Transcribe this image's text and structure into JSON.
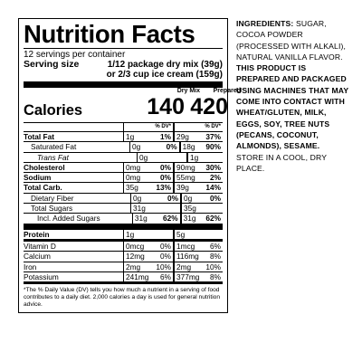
{
  "title": "Nutrition Facts",
  "servings_per_container": "12 servings per container",
  "serving_size_label": "Serving size",
  "serving_size_value": "1/12 package dry mix (39g)",
  "serving_size_alt": "or 2/3 cup ice cream (159g)",
  "col1_header": "Dry Mix",
  "col2_header": "Prepared",
  "calories_label": "Calories",
  "calories_dry": "140",
  "calories_prepared": "420",
  "dv_header": "% DV*",
  "rows": [
    {
      "name": "Total Fat",
      "dry": "1g",
      "dry_dv": "1%",
      "prep": "29g",
      "prep_dv": "37%"
    },
    {
      "name": "Saturated Fat",
      "dry": "0g",
      "dry_dv": "0%",
      "prep": "18g",
      "prep_dv": "90%"
    },
    {
      "name": "Trans Fat",
      "dry": "0g",
      "dry_dv": "",
      "prep": "1g",
      "prep_dv": ""
    },
    {
      "name": "Cholesterol",
      "dry": "0mg",
      "dry_dv": "0%",
      "prep": "90mg",
      "prep_dv": "30%"
    },
    {
      "name": "Sodium",
      "dry": "0mg",
      "dry_dv": "0%",
      "prep": "55mg",
      "prep_dv": "2%"
    },
    {
      "name": "Total Carb.",
      "dry": "35g",
      "dry_dv": "13%",
      "prep": "39g",
      "prep_dv": "14%"
    },
    {
      "name": "Dietary Fiber",
      "dry": "0g",
      "dry_dv": "0%",
      "prep": "0g",
      "prep_dv": "0%"
    },
    {
      "name": "Total Sugars",
      "dry": "31g",
      "dry_dv": "",
      "prep": "35g",
      "prep_dv": ""
    },
    {
      "name": "Incl. Added Sugars",
      "dry": "31g",
      "dry_dv": "62%",
      "prep": "31g",
      "prep_dv": "62%"
    },
    {
      "name": "Protein",
      "dry": "1g",
      "dry_dv": "",
      "prep": "5g",
      "prep_dv": ""
    },
    {
      "name": "Vitamin D",
      "dry": "0mcg",
      "dry_dv": "0%",
      "prep": "1mcg",
      "prep_dv": "6%"
    },
    {
      "name": "Calcium",
      "dry": "12mg",
      "dry_dv": "0%",
      "prep": "116mg",
      "prep_dv": "8%"
    },
    {
      "name": "Iron",
      "dry": "2mg",
      "dry_dv": "10%",
      "prep": "2mg",
      "prep_dv": "10%"
    },
    {
      "name": "Potassium",
      "dry": "241mg",
      "dry_dv": "6%",
      "prep": "377mg",
      "prep_dv": "8%"
    }
  ],
  "footnote": "*The % Daily Value (DV) tells you how much a nutrient in a serving of food contributes to a daily diet. 2,000 calories a day is used for general nutrition advice.",
  "ingredients_label": "INGREDIENTS:",
  "ingredients_text": "SUGAR, COCOA POWDER (PROCESSED WITH ALKALI), NATURAL VANILLA FLAVOR.",
  "allergen_text": "THIS PRODUCT IS PREPARED AND PACKAGED USING MACHINES THAT MAY COME INTO CONTACT WITH WHEAT/GLUTEN, MILK, EGGS, SOY, TREE NUTS (PECANS, COCONUT, ALMONDS), SESAME.",
  "storage_text": "STORE IN A COOL, DRY PLACE."
}
